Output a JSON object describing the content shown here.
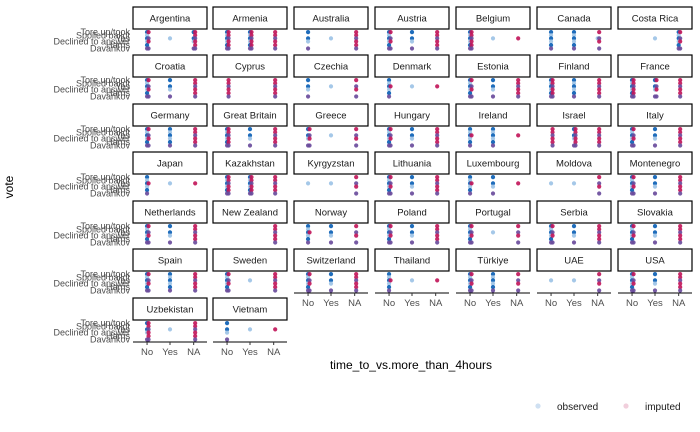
{
  "chart_data": {
    "type": "scatter",
    "xlabel": "time_to_vs.more_than_4hours",
    "ylabel": "vote",
    "x_categories": [
      "No",
      "Yes",
      "NA"
    ],
    "y_tick_labels": [
      "Tore up/took",
      "Spoiled ballot",
      "Yes",
      "Declined to answer",
      "Harris",
      "Davankov"
    ],
    "colors": {
      "observed_dark": "#0b5fb5",
      "observed_light": "#9dc3e6",
      "imputed_dark": "#c2185b",
      "imputed_purple": "#6a4c9c"
    },
    "legend": {
      "position": "bottom-right",
      "items": [
        {
          "label": "observed",
          "color": "#cfe0f2"
        },
        {
          "label": "imputed",
          "color": "#f1cfdc"
        }
      ]
    },
    "panels": [
      {
        "name": "Argentina",
        "obs": [
          3,
          1,
          2
        ],
        "imp": [
          2,
          0,
          3
        ]
      },
      {
        "name": "Armenia",
        "obs": [
          3,
          3,
          0
        ],
        "imp": [
          3,
          3,
          3
        ]
      },
      {
        "name": "Australia",
        "obs": [
          2,
          1,
          0
        ],
        "imp": [
          0,
          0,
          3
        ]
      },
      {
        "name": "Austria",
        "obs": [
          3,
          2,
          0
        ],
        "imp": [
          2,
          0,
          3
        ]
      },
      {
        "name": "Belgium",
        "obs": [
          3,
          1,
          0
        ],
        "imp": [
          3,
          0,
          1
        ]
      },
      {
        "name": "Canada",
        "obs": [
          3,
          3,
          1
        ],
        "imp": [
          0,
          0,
          2
        ]
      },
      {
        "name": "Costa Rica",
        "obs": [
          0,
          1,
          3
        ],
        "imp": [
          0,
          0,
          2
        ]
      },
      {
        "name": "Croatia",
        "obs": [
          3,
          2,
          0
        ],
        "imp": [
          2,
          0,
          3
        ]
      },
      {
        "name": "Cyprus",
        "obs": [
          0,
          0,
          0
        ],
        "imp": [
          3,
          0,
          3
        ]
      },
      {
        "name": "Czechia",
        "obs": [
          2,
          1,
          0
        ],
        "imp": [
          0,
          0,
          2
        ]
      },
      {
        "name": "Denmark",
        "obs": [
          3,
          1,
          0
        ],
        "imp": [
          1,
          0,
          1
        ]
      },
      {
        "name": "Estonia",
        "obs": [
          3,
          2,
          0
        ],
        "imp": [
          2,
          0,
          3
        ]
      },
      {
        "name": "Finland",
        "obs": [
          3,
          3,
          0
        ],
        "imp": [
          3,
          0,
          3
        ]
      },
      {
        "name": "France",
        "obs": [
          3,
          2,
          0
        ],
        "imp": [
          3,
          2,
          3
        ]
      },
      {
        "name": "Germany",
        "obs": [
          3,
          3,
          0
        ],
        "imp": [
          2,
          0,
          3
        ]
      },
      {
        "name": "Great Britain",
        "obs": [
          3,
          2,
          0
        ],
        "imp": [
          3,
          0,
          3
        ]
      },
      {
        "name": "Greece",
        "obs": [
          2,
          1,
          0
        ],
        "imp": [
          2,
          0,
          2
        ]
      },
      {
        "name": "Hungary",
        "obs": [
          3,
          2,
          0
        ],
        "imp": [
          2,
          0,
          3
        ]
      },
      {
        "name": "Ireland",
        "obs": [
          3,
          3,
          0
        ],
        "imp": [
          1,
          0,
          1
        ]
      },
      {
        "name": "Israel",
        "obs": [
          0,
          2,
          0
        ],
        "imp": [
          3,
          3,
          3
        ]
      },
      {
        "name": "Italy",
        "obs": [
          3,
          2,
          0
        ],
        "imp": [
          2,
          0,
          3
        ]
      },
      {
        "name": "Japan",
        "obs": [
          3,
          1,
          0
        ],
        "imp": [
          1,
          0,
          1
        ]
      },
      {
        "name": "Kazakhstan",
        "obs": [
          3,
          3,
          0
        ],
        "imp": [
          3,
          3,
          3
        ]
      },
      {
        "name": "Kyrgyzstan",
        "obs": [
          1,
          1,
          0
        ],
        "imp": [
          0,
          0,
          2
        ]
      },
      {
        "name": "Lithuania",
        "obs": [
          3,
          2,
          0
        ],
        "imp": [
          2,
          0,
          3
        ]
      },
      {
        "name": "Luxembourg",
        "obs": [
          3,
          2,
          0
        ],
        "imp": [
          1,
          0,
          1
        ]
      },
      {
        "name": "Moldova",
        "obs": [
          1,
          1,
          0
        ],
        "imp": [
          0,
          0,
          2
        ]
      },
      {
        "name": "Montenegro",
        "obs": [
          3,
          2,
          0
        ],
        "imp": [
          2,
          0,
          3
        ]
      },
      {
        "name": "Netherlands",
        "obs": [
          3,
          2,
          0
        ],
        "imp": [
          2,
          0,
          3
        ]
      },
      {
        "name": "New Zealand",
        "obs": [
          0,
          0,
          0
        ],
        "imp": [
          0,
          0,
          3
        ]
      },
      {
        "name": "Norway",
        "obs": [
          3,
          2,
          0
        ],
        "imp": [
          1,
          0,
          2
        ]
      },
      {
        "name": "Poland",
        "obs": [
          3,
          2,
          0
        ],
        "imp": [
          2,
          0,
          3
        ]
      },
      {
        "name": "Portugal",
        "obs": [
          3,
          1,
          0
        ],
        "imp": [
          2,
          0,
          2
        ]
      },
      {
        "name": "Serbia",
        "obs": [
          3,
          2,
          0
        ],
        "imp": [
          2,
          0,
          3
        ]
      },
      {
        "name": "Slovakia",
        "obs": [
          3,
          2,
          0
        ],
        "imp": [
          2,
          0,
          3
        ]
      },
      {
        "name": "Spain",
        "obs": [
          3,
          3,
          0
        ],
        "imp": [
          2,
          0,
          3
        ]
      },
      {
        "name": "Sweden",
        "obs": [
          3,
          1,
          0
        ],
        "imp": [
          2,
          0,
          3
        ]
      },
      {
        "name": "Switzerland",
        "obs": [
          3,
          2,
          0
        ],
        "imp": [
          2,
          0,
          3
        ]
      },
      {
        "name": "Thailand",
        "obs": [
          3,
          1,
          0
        ],
        "imp": [
          1,
          0,
          1
        ]
      },
      {
        "name": "Türkiye",
        "obs": [
          3,
          3,
          0
        ],
        "imp": [
          2,
          0,
          2
        ]
      },
      {
        "name": "UAE",
        "obs": [
          1,
          1,
          0
        ],
        "imp": [
          0,
          0,
          2
        ]
      },
      {
        "name": "USA",
        "obs": [
          3,
          2,
          0
        ],
        "imp": [
          2,
          0,
          3
        ]
      },
      {
        "name": "Uzbekistan",
        "obs": [
          2,
          1,
          0
        ],
        "imp": [
          3,
          0,
          3
        ]
      },
      {
        "name": "Vietnam",
        "obs": [
          2,
          1,
          0
        ],
        "imp": [
          0,
          0,
          1
        ]
      }
    ]
  }
}
